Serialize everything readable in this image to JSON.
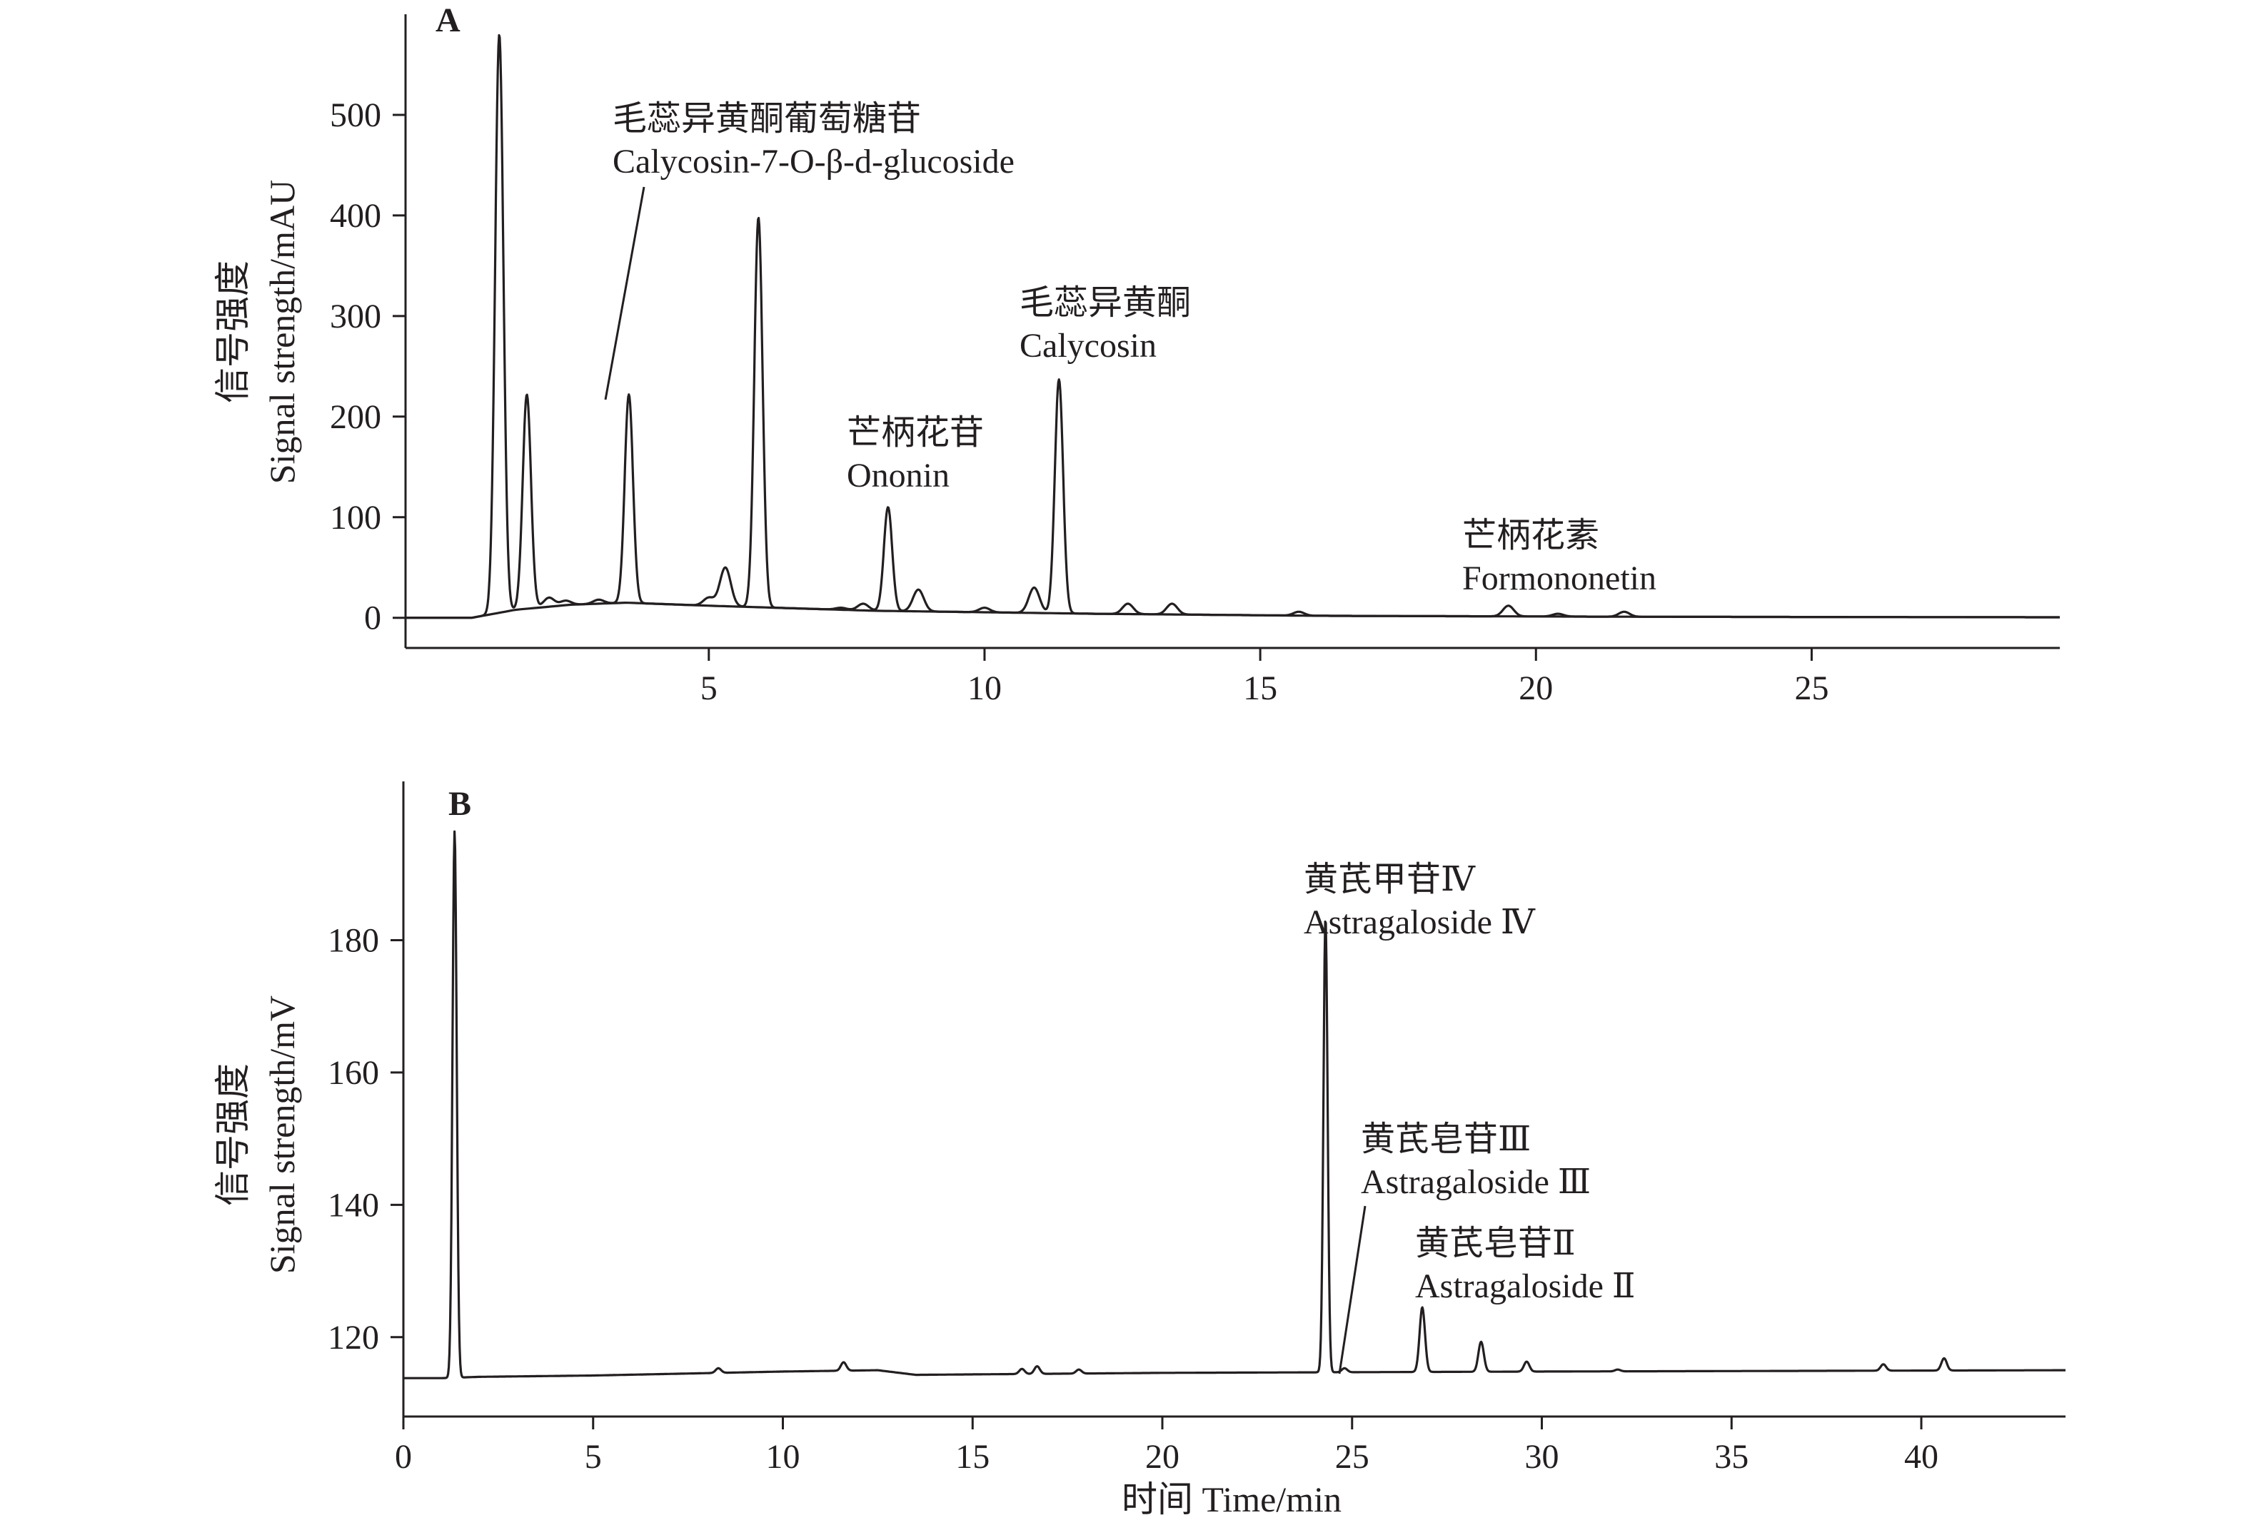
{
  "figure": {
    "x_title": "时间 Time/min"
  },
  "chart_data": [
    {
      "panel": "A",
      "type": "line",
      "ylabel_cn": "信号强度",
      "ylabel": "Signal strength/mAU",
      "xlim": [
        -0.5,
        29.5
      ],
      "ylim": [
        -30,
        600
      ],
      "x_ticks": [
        5,
        10,
        15,
        20,
        25
      ],
      "y_ticks": [
        0,
        100,
        200,
        300,
        400,
        500
      ],
      "series": [
        {
          "baseline": [
            [
              -0.5,
              0
            ],
            [
              0.7,
              0
            ],
            [
              1.5,
              8
            ],
            [
              2.5,
              13
            ],
            [
              3.5,
              15
            ],
            [
              5,
              12
            ],
            [
              8,
              7
            ],
            [
              12,
              4
            ],
            [
              16,
              2
            ],
            [
              22,
              1
            ],
            [
              29.5,
              0.5
            ]
          ],
          "peaks": [
            {
              "x": 1.2,
              "y": 580
            },
            {
              "x": 1.7,
              "y": 222
            },
            {
              "x": 2.1,
              "y": 20
            },
            {
              "x": 2.4,
              "y": 17
            },
            {
              "x": 3.0,
              "y": 18
            },
            {
              "x": 3.55,
              "y": 222
            },
            {
              "x": 5.0,
              "y": 20
            },
            {
              "x": 5.3,
              "y": 50
            },
            {
              "x": 5.9,
              "y": 398
            },
            {
              "x": 7.4,
              "y": 10
            },
            {
              "x": 7.8,
              "y": 14
            },
            {
              "x": 8.25,
              "y": 110
            },
            {
              "x": 8.8,
              "y": 28
            },
            {
              "x": 10.0,
              "y": 10
            },
            {
              "x": 10.9,
              "y": 30
            },
            {
              "x": 11.35,
              "y": 237
            },
            {
              "x": 12.6,
              "y": 14
            },
            {
              "x": 13.4,
              "y": 14
            },
            {
              "x": 15.7,
              "y": 6
            },
            {
              "x": 19.5,
              "y": 12
            },
            {
              "x": 20.4,
              "y": 4
            },
            {
              "x": 21.6,
              "y": 6
            }
          ]
        }
      ],
      "annotations": [
        {
          "cn": "毛蕊异黄酮葡萄糖苷",
          "en": "Calycosin-7-O-β-d-glucoside"
        },
        {
          "cn": "芒柄花苷",
          "en": "Ononin"
        },
        {
          "cn": "毛蕊异黄酮",
          "en": "Calycosin"
        },
        {
          "cn": "芒柄花素",
          "en": "Formononetin"
        }
      ]
    },
    {
      "panel": "B",
      "type": "line",
      "ylabel_cn": "信号强度",
      "ylabel": "Signal strength/mV",
      "xlim": [
        0,
        43.8
      ],
      "ylim": [
        108,
        204
      ],
      "x_ticks": [
        0,
        5,
        10,
        15,
        20,
        25,
        30,
        35,
        40
      ],
      "y_ticks": [
        120,
        140,
        160,
        180
      ],
      "series": [
        {
          "baseline": [
            [
              0,
              113.8
            ],
            [
              1.0,
              113.8
            ],
            [
              2,
              114.0
            ],
            [
              5,
              114.2
            ],
            [
              10,
              114.8
            ],
            [
              12.5,
              115.0
            ],
            [
              13.5,
              114.3
            ],
            [
              20,
              114.6
            ],
            [
              30,
              114.8
            ],
            [
              43.8,
              115.0
            ]
          ],
          "peaks": [
            {
              "x": 1.35,
              "y": 196.5
            },
            {
              "x": 8.3,
              "y": 115.3
            },
            {
              "x": 11.6,
              "y": 116.2
            },
            {
              "x": 16.3,
              "y": 115.2
            },
            {
              "x": 16.7,
              "y": 115.6
            },
            {
              "x": 17.8,
              "y": 115.1
            },
            {
              "x": 24.3,
              "y": 183.5
            },
            {
              "x": 24.8,
              "y": 115.3
            },
            {
              "x": 26.85,
              "y": 124.5
            },
            {
              "x": 28.4,
              "y": 119.3
            },
            {
              "x": 29.6,
              "y": 116.3
            },
            {
              "x": 32.0,
              "y": 115.1
            },
            {
              "x": 39.0,
              "y": 115.9
            },
            {
              "x": 40.6,
              "y": 116.8
            }
          ]
        }
      ],
      "annotations": [
        {
          "cn": "黄芪甲苷Ⅳ",
          "en": "Astragaloside Ⅳ"
        },
        {
          "cn": "黄芪皂苷Ⅲ",
          "en": "Astragaloside Ⅲ"
        },
        {
          "cn": "黄芪皂苷Ⅱ",
          "en": "Astragaloside Ⅱ"
        }
      ]
    }
  ]
}
